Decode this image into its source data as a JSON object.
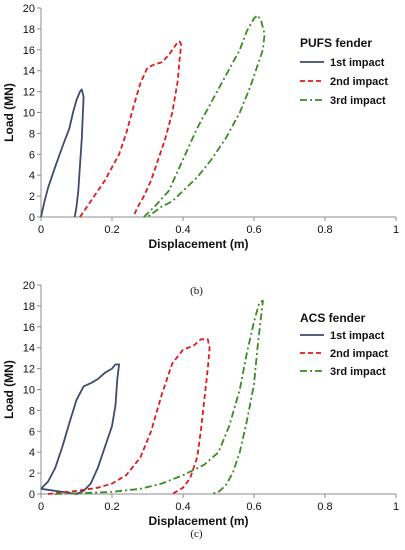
{
  "chart_data": [
    {
      "type": "line",
      "panel_label": "(b)",
      "legend_title": "PUFS fender",
      "xlabel": "Displacement (m)",
      "ylabel": "Load (MN)",
      "xlim": [
        0,
        1
      ],
      "ylim": [
        0,
        20
      ],
      "xticks": [
        0,
        0.2,
        0.4,
        0.6,
        0.8,
        1
      ],
      "xtick_labels": [
        "0",
        "0.2",
        "0.4",
        "0.6",
        "0.8",
        "1"
      ],
      "yticks": [
        0,
        2,
        4,
        6,
        8,
        10,
        12,
        14,
        16,
        18,
        20
      ],
      "ytick_labels": [
        "0",
        "2",
        "4",
        "6",
        "8",
        "10",
        "12",
        "14",
        "16",
        "18",
        "20"
      ],
      "grid": false,
      "legend_position": "top-right",
      "series": [
        {
          "name": "1st impact",
          "color": "#3c4b6e",
          "dash": "solid",
          "x": [
            0.0,
            0.01,
            0.02,
            0.04,
            0.06,
            0.08,
            0.09,
            0.1,
            0.11,
            0.115,
            0.12,
            0.118,
            0.115,
            0.11,
            0.105,
            0.1,
            0.095
          ],
          "y": [
            0.0,
            1.5,
            2.8,
            4.8,
            6.7,
            8.5,
            10.0,
            11.2,
            12.0,
            12.2,
            11.5,
            10.0,
            7.5,
            5.0,
            2.5,
            1.0,
            0.0
          ]
        },
        {
          "name": "2nd impact",
          "color": "#e0191c",
          "dash": "5,3",
          "x": [
            0.11,
            0.14,
            0.18,
            0.22,
            0.24,
            0.26,
            0.28,
            0.3,
            0.32,
            0.34,
            0.36,
            0.38,
            0.39,
            0.395,
            0.39,
            0.385,
            0.37,
            0.35,
            0.33,
            0.31,
            0.29,
            0.27,
            0.26
          ],
          "y": [
            0.0,
            1.5,
            3.5,
            6.0,
            8.0,
            10.5,
            12.8,
            14.3,
            14.6,
            14.8,
            15.5,
            16.5,
            16.8,
            16.5,
            15.0,
            13.0,
            10.0,
            7.5,
            5.5,
            3.5,
            2.0,
            0.8,
            0.0
          ]
        },
        {
          "name": "3rd impact",
          "color": "#3a8a25",
          "dash": "7,3,2,3",
          "x": [
            0.29,
            0.32,
            0.36,
            0.4,
            0.44,
            0.48,
            0.52,
            0.56,
            0.58,
            0.6,
            0.61,
            0.62,
            0.63,
            0.625,
            0.61,
            0.59,
            0.56,
            0.52,
            0.48,
            0.44,
            0.4,
            0.37,
            0.34,
            0.32,
            0.3
          ],
          "y": [
            0.0,
            1.0,
            2.5,
            5.5,
            8.5,
            11.0,
            13.5,
            16.0,
            17.8,
            19.0,
            19.3,
            18.8,
            17.5,
            16.0,
            14.5,
            12.5,
            10.0,
            7.5,
            5.5,
            3.8,
            2.5,
            1.5,
            1.0,
            0.5,
            0.0
          ]
        }
      ]
    },
    {
      "type": "line",
      "panel_label": "(c)",
      "legend_title": "ACS fender",
      "xlabel": "Displacement (m)",
      "ylabel": "Load (MN)",
      "xlim": [
        0,
        1
      ],
      "ylim": [
        0,
        20
      ],
      "xticks": [
        0,
        0.2,
        0.4,
        0.6,
        0.8,
        1
      ],
      "xtick_labels": [
        "0",
        "0.2",
        "0.4",
        "0.6",
        "0.8",
        "1"
      ],
      "yticks": [
        0,
        2,
        4,
        6,
        8,
        10,
        12,
        14,
        16,
        18,
        20
      ],
      "ytick_labels": [
        "0",
        "2",
        "4",
        "6",
        "8",
        "10",
        "12",
        "14",
        "16",
        "18",
        "20"
      ],
      "grid": false,
      "legend_position": "right",
      "series": [
        {
          "name": "1st impact",
          "color": "#3c4b6e",
          "dash": "solid",
          "x": [
            0.0,
            0.02,
            0.04,
            0.06,
            0.08,
            0.1,
            0.12,
            0.14,
            0.16,
            0.18,
            0.2,
            0.21,
            0.22,
            0.215,
            0.21,
            0.2,
            0.18,
            0.16,
            0.14,
            0.12,
            0.1
          ],
          "y": [
            0.5,
            1.2,
            2.5,
            4.5,
            6.8,
            9.0,
            10.3,
            10.6,
            11.0,
            11.6,
            12.0,
            12.4,
            12.4,
            11.0,
            8.5,
            6.5,
            4.5,
            2.5,
            1.0,
            0.3,
            0.0
          ],
          "closing": [
            [
              0.1,
              0.0
            ],
            [
              0.06,
              0.2
            ],
            [
              0.0,
              0.5
            ]
          ]
        },
        {
          "name": "2nd impact",
          "color": "#e0191c",
          "dash": "5,3",
          "x": [
            0.02,
            0.1,
            0.16,
            0.2,
            0.24,
            0.28,
            0.31,
            0.34,
            0.37,
            0.4,
            0.43,
            0.45,
            0.47,
            0.475,
            0.47,
            0.46,
            0.45,
            0.44,
            0.42,
            0.4,
            0.38,
            0.37
          ],
          "y": [
            0.0,
            0.3,
            0.6,
            1.0,
            1.8,
            3.5,
            6.0,
            9.5,
            12.5,
            13.8,
            14.2,
            14.8,
            14.8,
            14.0,
            12.0,
            9.0,
            6.0,
            3.5,
            1.5,
            0.6,
            0.2,
            0.0
          ]
        },
        {
          "name": "3rd impact",
          "color": "#3a8a25",
          "dash": "7,3,2,3",
          "x": [
            0.04,
            0.12,
            0.2,
            0.28,
            0.34,
            0.4,
            0.46,
            0.5,
            0.53,
            0.56,
            0.58,
            0.6,
            0.615,
            0.625,
            0.62,
            0.61,
            0.6,
            0.58,
            0.56,
            0.54,
            0.52,
            0.5,
            0.48
          ],
          "y": [
            0.0,
            0.1,
            0.2,
            0.5,
            1.0,
            1.8,
            2.8,
            4.0,
            6.5,
            10.0,
            13.5,
            16.5,
            18.3,
            18.5,
            17.0,
            14.0,
            10.5,
            7.0,
            4.0,
            2.0,
            0.8,
            0.2,
            0.0
          ]
        }
      ]
    }
  ]
}
